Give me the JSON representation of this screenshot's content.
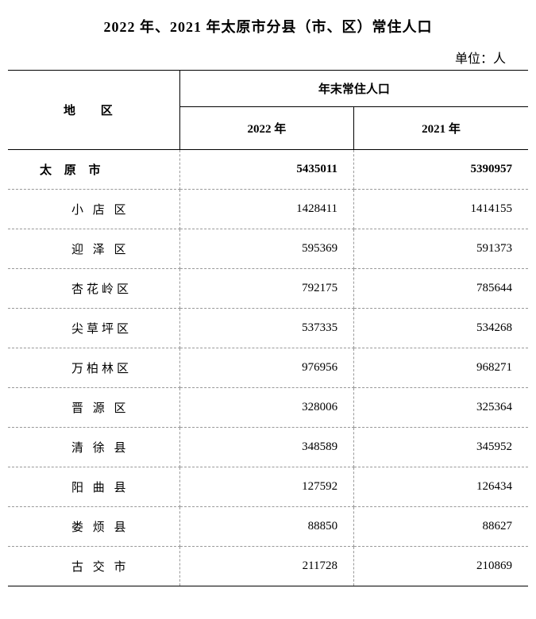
{
  "title": "2022 年、2021 年太原市分县（市、区）常住人口",
  "unit": "单位：人",
  "header": {
    "region": "地  区",
    "group": "年末常住人口",
    "y2022": "2022 年",
    "y2021": "2021 年"
  },
  "rows": [
    {
      "region": "太 原 市",
      "y2022": "5435011",
      "y2021": "5390957"
    },
    {
      "region": "小 店 区",
      "y2022": "1428411",
      "y2021": "1414155"
    },
    {
      "region": "迎 泽 区",
      "y2022": "595369",
      "y2021": "591373"
    },
    {
      "region": "杏花岭区",
      "y2022": "792175",
      "y2021": "785644"
    },
    {
      "region": "尖草坪区",
      "y2022": "537335",
      "y2021": "534268"
    },
    {
      "region": "万柏林区",
      "y2022": "976956",
      "y2021": "968271"
    },
    {
      "region": "晋 源 区",
      "y2022": "328006",
      "y2021": "325364"
    },
    {
      "region": "清 徐 县",
      "y2022": "348589",
      "y2021": "345952"
    },
    {
      "region": "阳 曲 县",
      "y2022": "127592",
      "y2021": "126434"
    },
    {
      "region": "娄 烦 县",
      "y2022": "88850",
      "y2021": "88627"
    },
    {
      "region": "古 交 市",
      "y2022": "211728",
      "y2021": "210869"
    }
  ],
  "styling": {
    "background_color": "#ffffff",
    "text_color": "#000000",
    "border_color_solid": "#000000",
    "border_color_dashed": "#999999",
    "title_fontsize": 18,
    "body_fontsize": 15,
    "font_family": "SimSun"
  }
}
